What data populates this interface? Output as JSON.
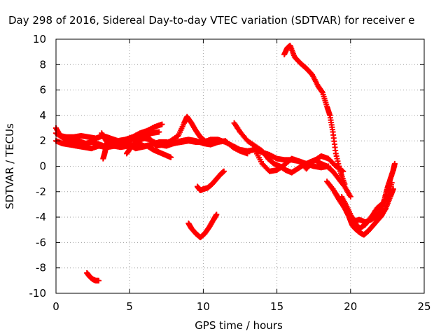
{
  "chart_data": {
    "type": "scatter",
    "title": "Day 298 of 2016, Sidereal Day-to-day VTEC variation (SDTVAR) for receiver e",
    "xlabel": "GPS time / hours",
    "ylabel": "SDTVAR / TECUs",
    "xlim": [
      0,
      25
    ],
    "ylim": [
      -10,
      10
    ],
    "x_ticks": [
      "0",
      "5",
      "10",
      "15",
      "20",
      "25"
    ],
    "y_ticks": [
      "-10",
      "-8",
      "-6",
      "-4",
      "-2",
      "0",
      "2",
      "4",
      "6",
      "8",
      "10"
    ],
    "grid": true,
    "marker": "+",
    "color": "#ff0000",
    "series": [
      {
        "x": [
          0.0,
          0.3,
          0.7,
          1.2,
          1.7,
          2.2,
          2.7,
          3.2,
          3.7,
          4.2,
          4.7,
          5.2,
          5.7,
          6.2,
          6.7,
          7.2
        ],
        "y": [
          3.0,
          2.4,
          2.3,
          2.3,
          2.4,
          2.3,
          2.2,
          2.4,
          2.2,
          2.0,
          2.1,
          2.3,
          2.6,
          2.8,
          3.1,
          3.3
        ]
      },
      {
        "x": [
          0.0,
          0.4,
          0.9,
          1.4,
          1.9,
          2.4,
          2.9,
          3.4,
          3.9,
          4.4,
          4.9,
          5.4
        ],
        "y": [
          2.0,
          1.8,
          1.7,
          1.6,
          1.5,
          1.4,
          1.6,
          1.5,
          1.6,
          1.5,
          1.6,
          1.7
        ]
      },
      {
        "x": [
          0.0,
          0.5,
          1.0,
          1.5,
          2.0,
          2.5,
          3.0,
          3.5,
          4.0,
          4.5,
          5.0,
          5.5,
          6.0,
          6.5,
          7.0
        ],
        "y": [
          2.6,
          2.2,
          2.0,
          2.0,
          1.8,
          1.9,
          1.7,
          1.5,
          1.6,
          1.8,
          2.0,
          2.3,
          2.4,
          2.6,
          2.7
        ]
      },
      {
        "x": [
          3.1,
          3.4,
          3.7,
          4.0,
          4.3,
          4.6,
          5.0,
          5.4,
          5.8,
          6.2,
          6.6,
          7.0,
          7.4,
          7.8
        ],
        "y": [
          2.6,
          2.0,
          1.8,
          1.7,
          1.9,
          2.0,
          1.7,
          1.4,
          1.5,
          1.6,
          1.3,
          1.1,
          0.9,
          0.7
        ]
      },
      {
        "x": [
          3.2,
          3.3,
          3.4,
          3.5
        ],
        "y": [
          0.6,
          1.0,
          1.5,
          2.0
        ]
      },
      {
        "x": [
          4.8,
          5.1,
          5.5,
          6.0,
          6.4,
          6.8,
          7.3,
          7.8,
          8.3,
          8.7,
          8.9,
          9.2,
          9.5,
          9.8,
          10.1
        ],
        "y": [
          1.0,
          1.5,
          2.0,
          2.2,
          2.1,
          1.6,
          1.7,
          2.0,
          2.4,
          3.4,
          3.9,
          3.4,
          2.8,
          2.3,
          2.0
        ]
      },
      {
        "x": [
          5.5,
          6.0,
          6.5,
          7.0,
          7.5,
          8.0,
          8.5,
          9.0,
          9.5,
          10.0,
          10.5,
          11.0,
          11.5,
          12.0,
          12.5,
          13.0,
          13.5,
          14.0,
          14.5,
          15.0,
          15.5,
          16.0,
          16.5,
          17.0,
          17.5,
          18.0,
          18.5
        ],
        "y": [
          1.8,
          1.6,
          1.7,
          1.9,
          1.9,
          1.8,
          1.9,
          2.0,
          1.9,
          1.9,
          2.1,
          2.1,
          1.9,
          1.6,
          1.3,
          1.2,
          1.3,
          1.1,
          0.9,
          0.6,
          0.5,
          0.5,
          0.4,
          0.2,
          0.0,
          -0.1,
          0.0
        ]
      },
      {
        "x": [
          6.0,
          6.5,
          7.0,
          7.5,
          8.0,
          8.5,
          9.0,
          9.5,
          10.0,
          10.5,
          11.0,
          11.5,
          12.0,
          12.5,
          13.0
        ],
        "y": [
          2.5,
          2.0,
          1.7,
          1.6,
          1.8,
          2.0,
          2.1,
          2.0,
          1.8,
          1.7,
          1.9,
          2.0,
          1.5,
          1.2,
          1.0
        ]
      },
      {
        "x": [
          12.1,
          12.5,
          13.0,
          13.5,
          14.0,
          14.4,
          14.8,
          15.2,
          15.6,
          16.0,
          16.4,
          16.8,
          17.2,
          17.6,
          18.0,
          18.4,
          18.8,
          19.2,
          19.6,
          20.0
        ],
        "y": [
          3.4,
          2.7,
          2.0,
          1.6,
          1.2,
          0.6,
          0.2,
          0.0,
          -0.3,
          -0.5,
          -0.2,
          0.1,
          0.3,
          0.5,
          0.2,
          0.0,
          -0.4,
          -1.0,
          -1.6,
          -2.4
        ]
      },
      {
        "x": [
          13.5,
          14.0,
          14.5,
          15.0,
          15.5,
          16.0,
          16.5,
          17.0,
          17.5,
          18.0,
          18.5,
          19.0,
          19.5
        ],
        "y": [
          1.3,
          0.2,
          -0.4,
          -0.3,
          0.1,
          0.6,
          0.4,
          -0.2,
          0.4,
          0.8,
          0.6,
          0.0,
          -0.4
        ]
      },
      {
        "x": [
          15.5,
          15.7,
          15.9,
          16.2,
          16.6,
          17.0,
          17.4,
          17.8,
          18.1,
          18.4,
          18.6,
          18.8,
          19.0,
          19.3,
          19.6
        ],
        "y": [
          8.8,
          9.3,
          9.5,
          8.6,
          8.1,
          7.7,
          7.2,
          6.3,
          5.8,
          4.7,
          4.0,
          2.7,
          1.0,
          -0.4,
          -1.4
        ]
      },
      {
        "x": [
          9.0,
          9.2,
          9.5,
          9.8,
          10.1,
          10.4,
          10.7,
          10.9
        ],
        "y": [
          -4.5,
          -4.9,
          -5.3,
          -5.6,
          -5.3,
          -4.8,
          -4.2,
          -3.8
        ]
      },
      {
        "x": [
          9.6,
          9.8,
          10.0,
          10.3,
          10.6,
          10.9,
          11.2,
          11.4
        ],
        "y": [
          -1.6,
          -1.9,
          -1.8,
          -1.7,
          -1.4,
          -1.0,
          -0.6,
          -0.4
        ]
      },
      {
        "x": [
          2.1,
          2.3,
          2.5,
          2.7,
          2.9
        ],
        "y": [
          -8.4,
          -8.7,
          -8.9,
          -9.0,
          -9.0
        ]
      },
      {
        "x": [
          18.4,
          18.8,
          19.2,
          19.6,
          19.9,
          20.1,
          20.3,
          20.6,
          20.9,
          21.2,
          21.5,
          21.8,
          22.1,
          22.4,
          22.7,
          22.9
        ],
        "y": [
          -1.2,
          -1.8,
          -2.6,
          -3.3,
          -4.0,
          -4.6,
          -4.9,
          -5.2,
          -5.4,
          -5.1,
          -4.7,
          -4.3,
          -3.9,
          -3.3,
          -2.4,
          -1.8
        ]
      },
      {
        "x": [
          18.8,
          19.2,
          19.6,
          20.0,
          20.3,
          20.6,
          21.0,
          21.4,
          21.8,
          22.1,
          22.3,
          22.5,
          22.7,
          22.9,
          23.0
        ],
        "y": [
          -1.8,
          -2.5,
          -3.2,
          -3.9,
          -4.3,
          -4.2,
          -4.4,
          -4.2,
          -3.9,
          -3.4,
          -2.6,
          -1.7,
          -1.0,
          -0.3,
          0.2
        ]
      },
      {
        "x": [
          19.4,
          19.8,
          20.2,
          20.6,
          21.0,
          21.4,
          21.8,
          22.2,
          22.5,
          22.8
        ],
        "y": [
          -2.4,
          -3.3,
          -4.3,
          -4.9,
          -4.6,
          -4.0,
          -3.3,
          -2.9,
          -2.4,
          -1.3
        ]
      }
    ]
  }
}
